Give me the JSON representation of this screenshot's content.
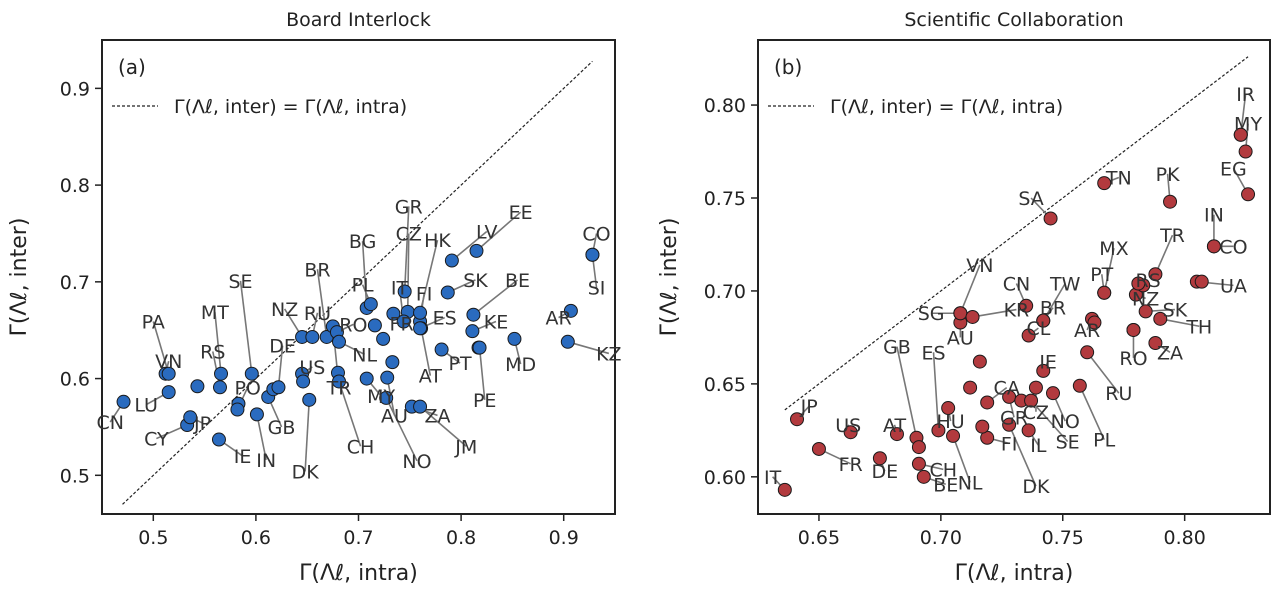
{
  "chart_data": [
    {
      "type": "scatter",
      "title": "Board Interlock",
      "panel_label": "(a)",
      "xlabel": "Γ(Λℓ, intra)",
      "ylabel": "Γ(Λℓ, inter)",
      "xlim": [
        0.45,
        0.95
      ],
      "ylim": [
        0.46,
        0.95
      ],
      "xticks": [
        0.5,
        0.6,
        0.7,
        0.8,
        0.9
      ],
      "yticks": [
        0.5,
        0.6,
        0.7,
        0.8,
        0.9
      ],
      "legend": "Γ(Λℓ, inter) = Γ(Λℓ, intra)",
      "legend_position": "top-left",
      "diagonal": [
        0.47,
        0.928
      ],
      "point_color": "#2a6bbf",
      "points": [
        {
          "label": "CN",
          "x": 0.471,
          "y": 0.576,
          "lx": 0.458,
          "ly": 0.555
        },
        {
          "label": "LU",
          "x": 0.515,
          "y": 0.586,
          "lx": 0.493,
          "ly": 0.573
        },
        {
          "label": "VN",
          "x": 0.512,
          "y": 0.605,
          "lx": 0.515,
          "ly": 0.618
        },
        {
          "label": "PA",
          "x": 0.515,
          "y": 0.605,
          "lx": 0.5,
          "ly": 0.659
        },
        {
          "label": "CY",
          "x": 0.533,
          "y": 0.552,
          "lx": 0.503,
          "ly": 0.538
        },
        {
          "label": "JP",
          "x": 0.536,
          "y": 0.56,
          "lx": 0.548,
          "ly": 0.554
        },
        {
          "label": "",
          "x": 0.543,
          "y": 0.592,
          "lx": null,
          "ly": null
        },
        {
          "label": "RS",
          "x": 0.565,
          "y": 0.591,
          "lx": 0.558,
          "ly": 0.628
        },
        {
          "label": "MT",
          "x": 0.566,
          "y": 0.605,
          "lx": 0.56,
          "ly": 0.669
        },
        {
          "label": "IE",
          "x": 0.564,
          "y": 0.537,
          "lx": 0.587,
          "ly": 0.52
        },
        {
          "label": "",
          "x": 0.583,
          "y": 0.574,
          "lx": null,
          "ly": null
        },
        {
          "label": "PO",
          "x": 0.582,
          "y": 0.568,
          "lx": 0.592,
          "ly": 0.591
        },
        {
          "label": "SE",
          "x": 0.596,
          "y": 0.605,
          "lx": 0.585,
          "ly": 0.701
        },
        {
          "label": "IN",
          "x": 0.601,
          "y": 0.563,
          "lx": 0.61,
          "ly": 0.516
        },
        {
          "label": "GB",
          "x": 0.612,
          "y": 0.581,
          "lx": 0.625,
          "ly": 0.55
        },
        {
          "label": "",
          "x": 0.617,
          "y": 0.589,
          "lx": null,
          "ly": null
        },
        {
          "label": "DE",
          "x": 0.622,
          "y": 0.591,
          "lx": 0.626,
          "ly": 0.634
        },
        {
          "label": "NZ",
          "x": 0.645,
          "y": 0.643,
          "lx": 0.628,
          "ly": 0.672
        },
        {
          "label": "RU",
          "x": 0.655,
          "y": 0.643,
          "lx": 0.66,
          "ly": 0.668
        },
        {
          "label": "US",
          "x": 0.645,
          "y": 0.605,
          "lx": 0.655,
          "ly": 0.612
        },
        {
          "label": "",
          "x": 0.646,
          "y": 0.597,
          "lx": null,
          "ly": null
        },
        {
          "label": "DK",
          "x": 0.652,
          "y": 0.578,
          "lx": 0.648,
          "ly": 0.504
        },
        {
          "label": "BR",
          "x": 0.669,
          "y": 0.643,
          "lx": 0.66,
          "ly": 0.713
        },
        {
          "label": "TR",
          "x": 0.675,
          "y": 0.654,
          "lx": 0.681,
          "ly": 0.591
        },
        {
          "label": "RO",
          "x": 0.679,
          "y": 0.648,
          "lx": 0.695,
          "ly": 0.656
        },
        {
          "label": "NL",
          "x": 0.681,
          "y": 0.638,
          "lx": 0.706,
          "ly": 0.625
        },
        {
          "label": "",
          "x": 0.68,
          "y": 0.606,
          "lx": null,
          "ly": null
        },
        {
          "label": "CH",
          "x": 0.681,
          "y": 0.597,
          "lx": 0.702,
          "ly": 0.53
        },
        {
          "label": "MY",
          "x": 0.708,
          "y": 0.6,
          "lx": 0.722,
          "ly": 0.582
        },
        {
          "label": "BG",
          "x": 0.708,
          "y": 0.673,
          "lx": 0.704,
          "ly": 0.742
        },
        {
          "label": "PL",
          "x": 0.712,
          "y": 0.677,
          "lx": 0.704,
          "ly": 0.697
        },
        {
          "label": "",
          "x": 0.716,
          "y": 0.655,
          "lx": null,
          "ly": null
        },
        {
          "label": "AU",
          "x": 0.728,
          "y": 0.601,
          "lx": 0.735,
          "ly": 0.562
        },
        {
          "label": "",
          "x": 0.724,
          "y": 0.641,
          "lx": null,
          "ly": null
        },
        {
          "label": "NO",
          "x": 0.727,
          "y": 0.58,
          "lx": 0.757,
          "ly": 0.515
        },
        {
          "label": "FR",
          "x": 0.734,
          "y": 0.667,
          "lx": 0.742,
          "ly": 0.657
        },
        {
          "label": "",
          "x": 0.733,
          "y": 0.617,
          "lx": null,
          "ly": null
        },
        {
          "label": "GR",
          "x": 0.745,
          "y": 0.69,
          "lx": 0.749,
          "ly": 0.778
        },
        {
          "label": "CZ",
          "x": 0.748,
          "y": 0.669,
          "lx": 0.749,
          "ly": 0.75
        },
        {
          "label": "IT",
          "x": 0.744,
          "y": 0.659,
          "lx": 0.74,
          "ly": 0.694
        },
        {
          "label": "FI",
          "x": 0.76,
          "y": 0.659,
          "lx": 0.764,
          "ly": 0.688
        },
        {
          "label": "HK",
          "x": 0.76,
          "y": 0.668,
          "lx": 0.777,
          "ly": 0.743
        },
        {
          "label": "AT",
          "x": 0.761,
          "y": 0.652,
          "lx": 0.77,
          "ly": 0.603
        },
        {
          "label": "ES",
          "x": 0.76,
          "y": 0.652,
          "lx": 0.784,
          "ly": 0.663
        },
        {
          "label": "ZA",
          "x": 0.752,
          "y": 0.571,
          "lx": 0.777,
          "ly": 0.562
        },
        {
          "label": "JM",
          "x": 0.76,
          "y": 0.571,
          "lx": 0.805,
          "ly": 0.53
        },
        {
          "label": "PT",
          "x": 0.781,
          "y": 0.63,
          "lx": 0.799,
          "ly": 0.616
        },
        {
          "label": "SK",
          "x": 0.787,
          "y": 0.689,
          "lx": 0.814,
          "ly": 0.702
        },
        {
          "label": "LV",
          "x": 0.791,
          "y": 0.722,
          "lx": 0.825,
          "ly": 0.752
        },
        {
          "label": "EE",
          "x": 0.815,
          "y": 0.732,
          "lx": 0.858,
          "ly": 0.772
        },
        {
          "label": "BE",
          "x": 0.812,
          "y": 0.666,
          "lx": 0.855,
          "ly": 0.702
        },
        {
          "label": "KE",
          "x": 0.811,
          "y": 0.649,
          "lx": 0.834,
          "ly": 0.659
        },
        {
          "label": "",
          "x": 0.817,
          "y": 0.632,
          "lx": null,
          "ly": null
        },
        {
          "label": "PE",
          "x": 0.818,
          "y": 0.632,
          "lx": 0.823,
          "ly": 0.578
        },
        {
          "label": "MD",
          "x": 0.852,
          "y": 0.641,
          "lx": 0.858,
          "ly": 0.615
        },
        {
          "label": "AR",
          "x": 0.907,
          "y": 0.67,
          "lx": 0.895,
          "ly": 0.663
        },
        {
          "label": "KZ",
          "x": 0.904,
          "y": 0.638,
          "lx": 0.944,
          "ly": 0.626
        },
        {
          "label": "SI",
          "x": 0.928,
          "y": 0.728,
          "lx": 0.932,
          "ly": 0.694
        },
        {
          "label": "CO",
          "x": 0.928,
          "y": 0.728,
          "lx": 0.932,
          "ly": 0.75
        }
      ]
    },
    {
      "type": "scatter",
      "title": "Scientific Collaboration",
      "panel_label": "(b)",
      "xlabel": "Γ(Λℓ, intra)",
      "ylabel": "Γ(Λℓ, inter)",
      "xlim": [
        0.625,
        0.835
      ],
      "ylim": [
        0.58,
        0.835
      ],
      "xticks": [
        0.65,
        0.7,
        0.75,
        0.8
      ],
      "yticks": [
        0.6,
        0.65,
        0.7,
        0.75,
        0.8
      ],
      "legend": "Γ(Λℓ, inter) = Γ(Λℓ, intra)",
      "legend_position": "top-left",
      "diagonal": [
        0.636,
        0.826
      ],
      "point_color": "#b23a3e",
      "points": [
        {
          "label": "IT",
          "x": 0.636,
          "y": 0.593,
          "lx": 0.631,
          "ly": 0.6
        },
        {
          "label": "JP",
          "x": 0.641,
          "y": 0.631,
          "lx": 0.646,
          "ly": 0.638
        },
        {
          "label": "FR",
          "x": 0.65,
          "y": 0.615,
          "lx": 0.663,
          "ly": 0.607
        },
        {
          "label": "US",
          "x": 0.663,
          "y": 0.624,
          "lx": 0.662,
          "ly": 0.628
        },
        {
          "label": "DE",
          "x": 0.675,
          "y": 0.61,
          "lx": 0.677,
          "ly": 0.603
        },
        {
          "label": "AT",
          "x": 0.682,
          "y": 0.623,
          "lx": 0.681,
          "ly": 0.628
        },
        {
          "label": "GB",
          "x": 0.69,
          "y": 0.621,
          "lx": 0.682,
          "ly": 0.67
        },
        {
          "label": "",
          "x": 0.691,
          "y": 0.616,
          "lx": null,
          "ly": null
        },
        {
          "label": "CH",
          "x": 0.691,
          "y": 0.607,
          "lx": 0.701,
          "ly": 0.604
        },
        {
          "label": "BE",
          "x": 0.693,
          "y": 0.6,
          "lx": 0.702,
          "ly": 0.596
        },
        {
          "label": "ES",
          "x": 0.699,
          "y": 0.625,
          "lx": 0.697,
          "ly": 0.667
        },
        {
          "label": "HU",
          "x": 0.703,
          "y": 0.637,
          "lx": 0.704,
          "ly": 0.63
        },
        {
          "label": "NL",
          "x": 0.705,
          "y": 0.622,
          "lx": 0.712,
          "ly": 0.597
        },
        {
          "label": "AU",
          "x": 0.708,
          "y": 0.683,
          "lx": 0.708,
          "ly": 0.675
        },
        {
          "label": "SG",
          "x": 0.708,
          "y": 0.688,
          "lx": 0.696,
          "ly": 0.688
        },
        {
          "label": "VN",
          "x": 0.708,
          "y": 0.688,
          "lx": 0.716,
          "ly": 0.714
        },
        {
          "label": "KR",
          "x": 0.713,
          "y": 0.686,
          "lx": 0.731,
          "ly": 0.69
        },
        {
          "label": "",
          "x": 0.712,
          "y": 0.648,
          "lx": null,
          "ly": null
        },
        {
          "label": "",
          "x": 0.716,
          "y": 0.662,
          "lx": null,
          "ly": null
        },
        {
          "label": "CA",
          "x": 0.719,
          "y": 0.64,
          "lx": 0.727,
          "ly": 0.648
        },
        {
          "label": "FI",
          "x": 0.719,
          "y": 0.621,
          "lx": 0.728,
          "ly": 0.618
        },
        {
          "label": "",
          "x": 0.717,
          "y": 0.627,
          "lx": null,
          "ly": null
        },
        {
          "label": "DK",
          "x": 0.728,
          "y": 0.628,
          "lx": 0.739,
          "ly": 0.595
        },
        {
          "label": "GR",
          "x": 0.728,
          "y": 0.643,
          "lx": 0.73,
          "ly": 0.632
        },
        {
          "label": "",
          "x": 0.733,
          "y": 0.641,
          "lx": null,
          "ly": null
        },
        {
          "label": "IL",
          "x": 0.736,
          "y": 0.625,
          "lx": 0.74,
          "ly": 0.617
        },
        {
          "label": "CZ",
          "x": 0.739,
          "y": 0.648,
          "lx": 0.739,
          "ly": 0.635
        },
        {
          "label": "CN",
          "x": 0.735,
          "y": 0.692,
          "lx": 0.731,
          "ly": 0.704
        },
        {
          "label": "CL",
          "x": 0.736,
          "y": 0.676,
          "lx": 0.74,
          "ly": 0.68
        },
        {
          "label": "BR",
          "x": 0.742,
          "y": 0.684,
          "lx": 0.746,
          "ly": 0.691
        },
        {
          "label": "TW",
          "x": 0.742,
          "y": 0.684,
          "lx": 0.751,
          "ly": 0.704
        },
        {
          "label": "IE",
          "x": 0.742,
          "y": 0.657,
          "lx": 0.744,
          "ly": 0.662
        },
        {
          "label": "SE",
          "x": 0.737,
          "y": 0.641,
          "lx": 0.752,
          "ly": 0.619
        },
        {
          "label": "NO",
          "x": 0.746,
          "y": 0.645,
          "lx": 0.751,
          "ly": 0.63
        },
        {
          "label": "SA",
          "x": 0.745,
          "y": 0.739,
          "lx": 0.737,
          "ly": 0.75
        },
        {
          "label": "TN",
          "x": 0.767,
          "y": 0.758,
          "lx": 0.773,
          "ly": 0.761
        },
        {
          "label": "PL",
          "x": 0.757,
          "y": 0.649,
          "lx": 0.767,
          "ly": 0.62
        },
        {
          "label": "AR",
          "x": 0.762,
          "y": 0.685,
          "lx": 0.76,
          "ly": 0.679
        },
        {
          "label": "",
          "x": 0.763,
          "y": 0.683,
          "lx": null,
          "ly": null
        },
        {
          "label": "RU",
          "x": 0.76,
          "y": 0.667,
          "lx": 0.773,
          "ly": 0.645
        },
        {
          "label": "PT",
          "x": 0.767,
          "y": 0.699,
          "lx": 0.766,
          "ly": 0.709
        },
        {
          "label": "MX",
          "x": 0.767,
          "y": 0.699,
          "lx": 0.771,
          "ly": 0.723
        },
        {
          "label": "",
          "x": 0.779,
          "y": 0.679,
          "lx": null,
          "ly": null
        },
        {
          "label": "RO",
          "x": 0.779,
          "y": 0.679,
          "lx": 0.779,
          "ly": 0.664
        },
        {
          "label": "NZ",
          "x": 0.78,
          "y": 0.698,
          "lx": 0.784,
          "ly": 0.696
        },
        {
          "label": "RS",
          "x": 0.783,
          "y": 0.703,
          "lx": 0.785,
          "ly": 0.706
        },
        {
          "label": "",
          "x": 0.781,
          "y": 0.704,
          "lx": null,
          "ly": null
        },
        {
          "label": "SK",
          "x": 0.784,
          "y": 0.689,
          "lx": 0.796,
          "ly": 0.69
        },
        {
          "label": "ZA",
          "x": 0.788,
          "y": 0.672,
          "lx": 0.794,
          "ly": 0.667
        },
        {
          "label": "TH",
          "x": 0.79,
          "y": 0.685,
          "lx": 0.806,
          "ly": 0.681
        },
        {
          "label": "TR",
          "x": 0.788,
          "y": 0.709,
          "lx": 0.795,
          "ly": 0.73
        },
        {
          "label": "PK",
          "x": 0.794,
          "y": 0.748,
          "lx": 0.793,
          "ly": 0.763
        },
        {
          "label": "UA",
          "x": 0.805,
          "y": 0.705,
          "lx": 0.82,
          "ly": 0.703
        },
        {
          "label": "",
          "x": 0.807,
          "y": 0.705,
          "lx": null,
          "ly": null
        },
        {
          "label": "CO",
          "x": 0.812,
          "y": 0.724,
          "lx": 0.82,
          "ly": 0.724
        },
        {
          "label": "IN",
          "x": 0.812,
          "y": 0.724,
          "lx": 0.812,
          "ly": 0.741
        },
        {
          "label": "EG",
          "x": 0.826,
          "y": 0.752,
          "lx": 0.82,
          "ly": 0.766
        },
        {
          "label": "MY",
          "x": 0.825,
          "y": 0.775,
          "lx": 0.826,
          "ly": 0.79
        },
        {
          "label": "",
          "x": 0.823,
          "y": 0.784,
          "lx": null,
          "ly": null
        },
        {
          "label": "IR",
          "x": 0.823,
          "y": 0.784,
          "lx": 0.825,
          "ly": 0.806
        }
      ]
    }
  ]
}
